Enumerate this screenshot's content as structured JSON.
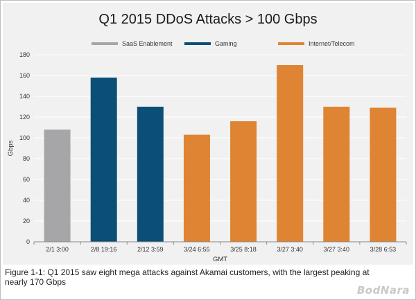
{
  "chart_data": {
    "type": "bar",
    "title": "Q1 2015 DDoS Attacks > 100 Gbps",
    "xlabel": "GMT",
    "ylabel": "Gbps",
    "ylim": [
      0,
      180
    ],
    "yticks": [
      0,
      20,
      40,
      60,
      80,
      100,
      120,
      140,
      160,
      180
    ],
    "grid": true,
    "legend_position": "top",
    "categories": [
      "2/1 3:00",
      "2/8 19:16",
      "2/12 3:59",
      "3/24 6:55",
      "3/25 8:18",
      "3/27 3:40",
      "3/27 3:40",
      "3/28 6:53"
    ],
    "values": [
      108,
      158,
      130,
      103,
      116,
      170,
      130,
      129
    ],
    "groups": [
      "SaaS Enablement",
      "Gaming",
      "Gaming",
      "Internet/Telecom",
      "Internet/Telecom",
      "Internet/Telecom",
      "Internet/Telecom",
      "Internet/Telecom"
    ],
    "legend": [
      {
        "name": "SaaS Enablement",
        "color": "#a6a6a8"
      },
      {
        "name": "Gaming",
        "color": "#0b4f77"
      },
      {
        "name": "Internet/Telecom",
        "color": "#de8433"
      }
    ]
  },
  "caption": "Figure 1-1: Q1 2015 saw eight mega attacks against Akamai customers, with the largest peaking at nearly 170 Gbps",
  "watermark": "BodNara"
}
